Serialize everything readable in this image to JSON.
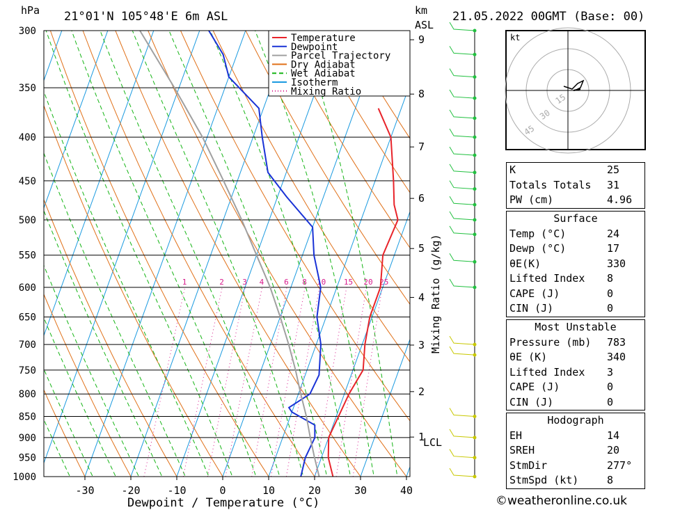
{
  "header": {
    "pressure_unit": "hPa",
    "location": "21°01'N  105°48'E  6m  ASL",
    "height_unit_line1": "km",
    "height_unit_line2": "ASL",
    "datetime": "21.05.2022  00GMT  (Base: 00)"
  },
  "chart_data": {
    "type": "line",
    "title": "21°01'N  105°48'E  6m  ASL",
    "xlabel": "Dewpoint / Temperature (°C)",
    "ylabel": "hPa",
    "right_axis_label": "Mixing Ratio (g/kg)",
    "x_ticks": [
      -30,
      -20,
      -10,
      0,
      10,
      20,
      30,
      40
    ],
    "pressure_levels": [
      300,
      350,
      400,
      450,
      500,
      550,
      600,
      650,
      700,
      750,
      800,
      850,
      900,
      950,
      1000
    ],
    "height_ticks_km": [
      "1",
      "2",
      "3",
      "4",
      "5",
      "6",
      "7",
      "8",
      "9"
    ],
    "lcl_label": "LCL",
    "mixing_ratio_labels": [
      "1",
      "2",
      "3",
      "4",
      "6",
      "8",
      "10",
      "15",
      "20",
      "25"
    ],
    "legend": [
      "Temperature",
      "Dewpoint",
      "Parcel Trajectory",
      "Dry Adiabat",
      "Wet Adiabat",
      "Isotherm",
      "Mixing Ratio"
    ],
    "colors": {
      "temperature": "#e8232a",
      "dewpoint": "#1932d6",
      "parcel": "#a0a0a0",
      "dry_adiabat": "#e07018",
      "wet_adiabat": "#14b414",
      "isotherm": "#1a9ae0",
      "mixing_ratio": "#d81a8c"
    },
    "series": [
      {
        "name": "Temperature",
        "p": [
          1000,
          950,
          900,
          850,
          800,
          750,
          700,
          650,
          600,
          550,
          500,
          480,
          450,
          400,
          370
        ],
        "t": [
          24,
          21.5,
          20,
          20.5,
          21,
          22.2,
          20.6,
          19.5,
          19.5,
          17.5,
          18,
          16,
          14,
          10,
          5
        ]
      },
      {
        "name": "Dewpoint",
        "p": [
          1000,
          950,
          900,
          870,
          840,
          830,
          800,
          760,
          700,
          650,
          600,
          550,
          510,
          470,
          440,
          400,
          370,
          340,
          320,
          300
        ],
        "t": [
          17,
          16.5,
          17,
          16,
          10,
          9,
          12.5,
          13,
          11,
          8,
          6.5,
          2.5,
          0,
          -8,
          -14,
          -18,
          -21,
          -30,
          -33,
          -38
        ]
      },
      {
        "name": "Parcel Trajectory",
        "p": [
          1000,
          950,
          900,
          850,
          800,
          750,
          700,
          650,
          600,
          550,
          500,
          450,
          400,
          350,
          300
        ],
        "t": [
          21,
          18.5,
          16,
          13.5,
          10.5,
          7.5,
          4,
          0,
          -4.5,
          -10,
          -16,
          -23,
          -31,
          -41,
          -53
        ]
      }
    ]
  },
  "hodograph": {
    "unit": "kt",
    "rings": [
      "15",
      "30",
      "45"
    ]
  },
  "indices": [
    {
      "label": "K",
      "value": "25"
    },
    {
      "label": "Totals Totals",
      "value": "31"
    },
    {
      "label": "PW (cm)",
      "value": "4.96"
    }
  ],
  "surface": {
    "title": "Surface",
    "rows": [
      {
        "label": "Temp (°C)",
        "value": "24"
      },
      {
        "label": "Dewp (°C)",
        "value": "17"
      },
      {
        "label": "θE(K)",
        "value": "330"
      },
      {
        "label": "Lifted Index",
        "value": "8"
      },
      {
        "label": "CAPE (J)",
        "value": "0"
      },
      {
        "label": "CIN (J)",
        "value": "0"
      }
    ]
  },
  "most_unstable": {
    "title": "Most Unstable",
    "rows": [
      {
        "label": "Pressure (mb)",
        "value": "783"
      },
      {
        "label": "θE (K)",
        "value": "340"
      },
      {
        "label": "Lifted Index",
        "value": "3"
      },
      {
        "label": "CAPE (J)",
        "value": "0"
      },
      {
        "label": "CIN (J)",
        "value": "0"
      }
    ]
  },
  "hodograph_table": {
    "title": "Hodograph",
    "rows": [
      {
        "label": "EH",
        "value": "14"
      },
      {
        "label": "SREH",
        "value": "20"
      },
      {
        "label": "StmDir",
        "value": "277°"
      },
      {
        "label": "StmSpd (kt)",
        "value": "8"
      }
    ]
  },
  "footer": {
    "copyright": "©weatheronline.co.uk"
  }
}
